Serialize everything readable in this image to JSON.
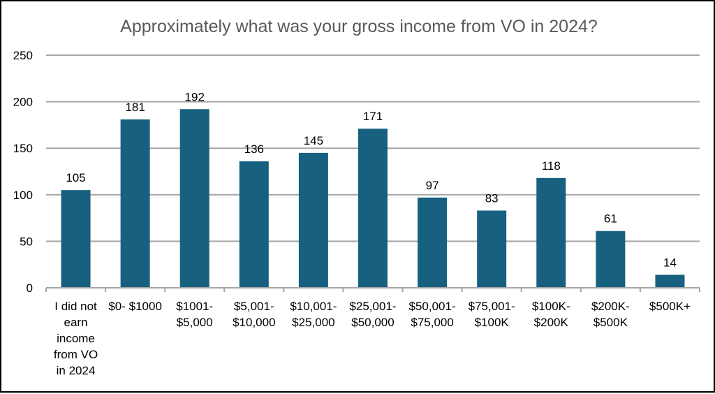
{
  "chart_data": {
    "type": "bar",
    "title": "Approximately what was your gross income from VO in 2024?",
    "xlabel": "",
    "ylabel": "",
    "categories": [
      "I did not earn income from VO in 2024",
      "$0- $1000",
      "$1001- $5,000",
      "$5,001- $10,000",
      "$10,001- $25,000",
      "$25,001- $50,000",
      "$50,001- $75,000",
      "$75,001- $100K",
      "$100K- $200K",
      "$200K- $500K",
      "$500K+"
    ],
    "category_label_lines": [
      [
        "I did not",
        "earn",
        "income",
        "from VO",
        "in 2024"
      ],
      [
        "$0- $1000"
      ],
      [
        "$1001-",
        "$5,000"
      ],
      [
        "$5,001-",
        "$10,000"
      ],
      [
        "$10,001-",
        "$25,000"
      ],
      [
        "$25,001-",
        "$50,000"
      ],
      [
        "$50,001-",
        "$75,000"
      ],
      [
        "$75,001-",
        "$100K"
      ],
      [
        "$100K-",
        "$200K"
      ],
      [
        "$200K-",
        "$500K"
      ],
      [
        "$500K+"
      ]
    ],
    "values": [
      105,
      181,
      192,
      136,
      145,
      171,
      97,
      83,
      118,
      61,
      14
    ],
    "ylim": [
      0,
      250
    ],
    "yticks": [
      0,
      50,
      100,
      150,
      200,
      250
    ],
    "grid": true,
    "legend": "none",
    "bar_color": "#17607f",
    "gridline_color": "#a6a6a6",
    "data_labels": true
  }
}
